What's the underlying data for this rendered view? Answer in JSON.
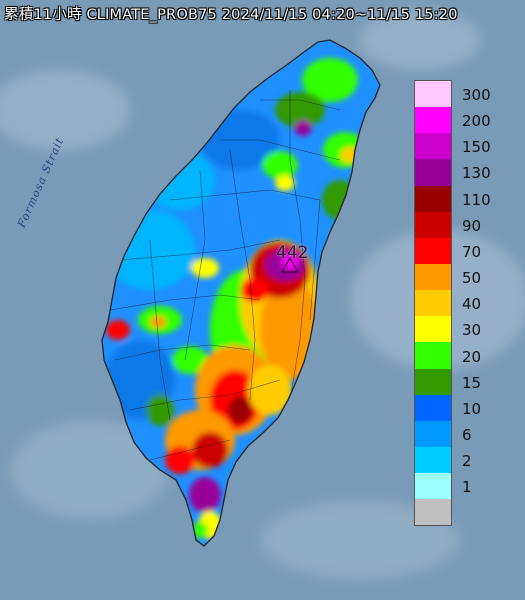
{
  "header": {
    "title": "累積11小時 CLIMATE_PROB75 2024/11/15 04:20~11/15 15:20"
  },
  "map": {
    "sea_label": "Formosa Strait",
    "max_value_label": "442"
  },
  "legend": {
    "bins": [
      {
        "label": "300",
        "color": "#ffc8ff"
      },
      {
        "label": "200",
        "color": "#ff00ff"
      },
      {
        "label": "150",
        "color": "#cc00cc"
      },
      {
        "label": "130",
        "color": "#990099"
      },
      {
        "label": "110",
        "color": "#990000"
      },
      {
        "label": "90",
        "color": "#cc0000"
      },
      {
        "label": "70",
        "color": "#ff0000"
      },
      {
        "label": "50",
        "color": "#ff9900"
      },
      {
        "label": "40",
        "color": "#ffcc00"
      },
      {
        "label": "30",
        "color": "#ffff00"
      },
      {
        "label": "20",
        "color": "#33ff00"
      },
      {
        "label": "15",
        "color": "#339900"
      },
      {
        "label": "10",
        "color": "#0066ff"
      },
      {
        "label": "6",
        "color": "#0099ff"
      },
      {
        "label": "2",
        "color": "#00ccff"
      },
      {
        "label": "1",
        "color": "#99ffff"
      },
      {
        "label": "",
        "color": "#c0c0c0"
      }
    ]
  },
  "colors": {
    "sea": "#7a9bb8",
    "coast": "#222222"
  }
}
